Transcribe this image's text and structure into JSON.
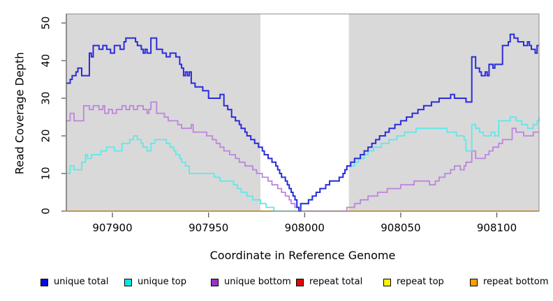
{
  "chart_data": {
    "type": "line",
    "step": true,
    "title": "",
    "xlabel": "Coordinate in Reference Genome",
    "ylabel": "Read Coverage Depth",
    "xlim": [
      907876,
      908122
    ],
    "ylim": [
      0,
      52.4
    ],
    "x_ticks": [
      907900,
      907950,
      908000,
      908050,
      908100
    ],
    "y_ticks": [
      0,
      10,
      20,
      30,
      40,
      50
    ],
    "grid": false,
    "plot_background": "#d9d9d9",
    "page_background": "#ffffff",
    "highlight_region": {
      "x_start": 907977,
      "x_end": 908023,
      "color": "#ffffff"
    },
    "legend_position": "bottom",
    "series": [
      {
        "name": "unique total",
        "color": "#0909dd",
        "line_color": "#2b2bdc",
        "line_width": 2,
        "draw_order": 6,
        "points": [
          [
            907876,
            34
          ],
          [
            907878,
            35
          ],
          [
            907879,
            36
          ],
          [
            907881,
            37
          ],
          [
            907882,
            38
          ],
          [
            907884,
            36
          ],
          [
            907888,
            42
          ],
          [
            907889,
            41
          ],
          [
            907890,
            44
          ],
          [
            907893,
            43
          ],
          [
            907895,
            44
          ],
          [
            907897,
            43
          ],
          [
            907899,
            42
          ],
          [
            907901,
            44
          ],
          [
            907904,
            43
          ],
          [
            907906,
            45
          ],
          [
            907907,
            46
          ],
          [
            907912,
            45
          ],
          [
            907913,
            44
          ],
          [
            907915,
            43
          ],
          [
            907916,
            42
          ],
          [
            907917,
            43
          ],
          [
            907918,
            42
          ],
          [
            907920,
            46
          ],
          [
            907923,
            43
          ],
          [
            907926,
            42
          ],
          [
            907928,
            41
          ],
          [
            907930,
            42
          ],
          [
            907933,
            41
          ],
          [
            907935,
            39
          ],
          [
            907936,
            38
          ],
          [
            907937,
            36
          ],
          [
            907938,
            37
          ],
          [
            907939,
            36
          ],
          [
            907940,
            37
          ],
          [
            907941,
            34
          ],
          [
            907943,
            33
          ],
          [
            907947,
            32
          ],
          [
            907950,
            30
          ],
          [
            907954,
            30
          ],
          [
            907956,
            31
          ],
          [
            907958,
            28
          ],
          [
            907960,
            27
          ],
          [
            907962,
            25
          ],
          [
            907964,
            24
          ],
          [
            907966,
            23
          ],
          [
            907967,
            22
          ],
          [
            907969,
            21
          ],
          [
            907970,
            20
          ],
          [
            907972,
            19
          ],
          [
            907974,
            18
          ],
          [
            907976,
            17
          ],
          [
            907978,
            16
          ],
          [
            907979,
            15
          ],
          [
            907981,
            14
          ],
          [
            907983,
            13
          ],
          [
            907985,
            12
          ],
          [
            907986,
            11
          ],
          [
            907987,
            10
          ],
          [
            907988,
            9
          ],
          [
            907990,
            8
          ],
          [
            907991,
            7
          ],
          [
            907992,
            6
          ],
          [
            907993,
            5
          ],
          [
            907994,
            4
          ],
          [
            907995,
            3
          ],
          [
            907996,
            1
          ],
          [
            907997,
            0
          ],
          [
            907998,
            2
          ],
          [
            908002,
            3
          ],
          [
            908004,
            4
          ],
          [
            908006,
            5
          ],
          [
            908008,
            6
          ],
          [
            908011,
            7
          ],
          [
            908013,
            8
          ],
          [
            908018,
            9
          ],
          [
            908020,
            10
          ],
          [
            908021,
            11
          ],
          [
            908022,
            12
          ],
          [
            908024,
            13
          ],
          [
            908026,
            14
          ],
          [
            908029,
            15
          ],
          [
            908031,
            16
          ],
          [
            908033,
            17
          ],
          [
            908035,
            18
          ],
          [
            908037,
            19
          ],
          [
            908039,
            20
          ],
          [
            908042,
            21
          ],
          [
            908044,
            22
          ],
          [
            908047,
            23
          ],
          [
            908050,
            24
          ],
          [
            908053,
            25
          ],
          [
            908056,
            26
          ],
          [
            908059,
            27
          ],
          [
            908062,
            28
          ],
          [
            908066,
            29
          ],
          [
            908070,
            30
          ],
          [
            908074,
            30
          ],
          [
            908076,
            31
          ],
          [
            908078,
            30
          ],
          [
            908082,
            30
          ],
          [
            908084,
            29
          ],
          [
            908086,
            29
          ],
          [
            908087,
            41
          ],
          [
            908089,
            38
          ],
          [
            908091,
            37
          ],
          [
            908092,
            36
          ],
          [
            908094,
            37
          ],
          [
            908095,
            36
          ],
          [
            908096,
            39
          ],
          [
            908098,
            38
          ],
          [
            908099,
            39
          ],
          [
            908102,
            39
          ],
          [
            908103,
            44
          ],
          [
            908105,
            44
          ],
          [
            908106,
            45
          ],
          [
            908107,
            47
          ],
          [
            908109,
            46
          ],
          [
            908111,
            45
          ],
          [
            908114,
            44
          ],
          [
            908116,
            45
          ],
          [
            908117,
            44
          ],
          [
            908118,
            43
          ],
          [
            908120,
            42
          ],
          [
            908121,
            44
          ],
          [
            908122,
            44
          ]
        ]
      },
      {
        "name": "unique top",
        "color": "#00e5e5",
        "line_color": "#5fe8ea",
        "line_width": 1.8,
        "draw_order": 5,
        "points": [
          [
            907876,
            10
          ],
          [
            907878,
            12
          ],
          [
            907880,
            11
          ],
          [
            907884,
            13
          ],
          [
            907886,
            15
          ],
          [
            907887,
            14
          ],
          [
            907889,
            15
          ],
          [
            907894,
            16
          ],
          [
            907897,
            17
          ],
          [
            907901,
            16
          ],
          [
            907905,
            18
          ],
          [
            907909,
            19
          ],
          [
            907911,
            20
          ],
          [
            907913,
            19
          ],
          [
            907915,
            18
          ],
          [
            907916,
            17
          ],
          [
            907918,
            16
          ],
          [
            907920,
            18
          ],
          [
            907922,
            19
          ],
          [
            907928,
            18
          ],
          [
            907930,
            17
          ],
          [
            907932,
            16
          ],
          [
            907933,
            15
          ],
          [
            907935,
            14
          ],
          [
            907936,
            13
          ],
          [
            907938,
            12
          ],
          [
            907940,
            10
          ],
          [
            907950,
            10
          ],
          [
            907953,
            9
          ],
          [
            907956,
            8
          ],
          [
            907963,
            7
          ],
          [
            907965,
            6
          ],
          [
            907967,
            5
          ],
          [
            907970,
            4
          ],
          [
            907973,
            3
          ],
          [
            907977,
            2
          ],
          [
            907980,
            1
          ],
          [
            907984,
            0
          ],
          [
            907998,
            2
          ],
          [
            908002,
            3
          ],
          [
            908004,
            4
          ],
          [
            908006,
            5
          ],
          [
            908008,
            6
          ],
          [
            908011,
            7
          ],
          [
            908013,
            8
          ],
          [
            908018,
            9
          ],
          [
            908020,
            10
          ],
          [
            908021,
            11
          ],
          [
            908022,
            12
          ],
          [
            908026,
            13
          ],
          [
            908028,
            14
          ],
          [
            908031,
            15
          ],
          [
            908033,
            16
          ],
          [
            908036,
            17
          ],
          [
            908040,
            18
          ],
          [
            908044,
            19
          ],
          [
            908048,
            20
          ],
          [
            908052,
            21
          ],
          [
            908058,
            22
          ],
          [
            908068,
            22
          ],
          [
            908074,
            21
          ],
          [
            908079,
            20
          ],
          [
            908083,
            19
          ],
          [
            908084,
            16
          ],
          [
            908087,
            23
          ],
          [
            908089,
            22
          ],
          [
            908091,
            21
          ],
          [
            908093,
            20
          ],
          [
            908097,
            21
          ],
          [
            908099,
            20
          ],
          [
            908101,
            24
          ],
          [
            908107,
            25
          ],
          [
            908110,
            24
          ],
          [
            908113,
            23
          ],
          [
            908116,
            22
          ],
          [
            908119,
            23
          ],
          [
            908121,
            24
          ],
          [
            908122,
            25
          ]
        ]
      },
      {
        "name": "unique bottom",
        "color": "#9932cc",
        "line_color": "#bc85de",
        "line_width": 1.8,
        "draw_order": 4,
        "points": [
          [
            907876,
            24
          ],
          [
            907878,
            26
          ],
          [
            907880,
            24
          ],
          [
            907885,
            28
          ],
          [
            907888,
            27
          ],
          [
            907890,
            28
          ],
          [
            907893,
            27
          ],
          [
            907895,
            28
          ],
          [
            907896,
            26
          ],
          [
            907898,
            27
          ],
          [
            907900,
            26
          ],
          [
            907902,
            27
          ],
          [
            907905,
            28
          ],
          [
            907907,
            27
          ],
          [
            907909,
            28
          ],
          [
            907911,
            27
          ],
          [
            907913,
            28
          ],
          [
            907916,
            27
          ],
          [
            907918,
            26
          ],
          [
            907919,
            27
          ],
          [
            907920,
            29
          ],
          [
            907923,
            26
          ],
          [
            907927,
            25
          ],
          [
            907929,
            24
          ],
          [
            907932,
            24
          ],
          [
            907934,
            23
          ],
          [
            907936,
            22
          ],
          [
            907939,
            22
          ],
          [
            907941,
            23
          ],
          [
            907942,
            21
          ],
          [
            907947,
            21
          ],
          [
            907949,
            20
          ],
          [
            907952,
            19
          ],
          [
            907954,
            18
          ],
          [
            907956,
            17
          ],
          [
            907958,
            16
          ],
          [
            907961,
            15
          ],
          [
            907964,
            14
          ],
          [
            907966,
            13
          ],
          [
            907969,
            12
          ],
          [
            907973,
            11
          ],
          [
            907975,
            10
          ],
          [
            907978,
            9
          ],
          [
            907981,
            8
          ],
          [
            907983,
            7
          ],
          [
            907986,
            6
          ],
          [
            907988,
            5
          ],
          [
            907990,
            4
          ],
          [
            907992,
            3
          ],
          [
            907993,
            2
          ],
          [
            907995,
            1
          ],
          [
            907997,
            0
          ],
          [
            908022,
            1
          ],
          [
            908026,
            2
          ],
          [
            908029,
            3
          ],
          [
            908033,
            4
          ],
          [
            908038,
            5
          ],
          [
            908043,
            6
          ],
          [
            908050,
            7
          ],
          [
            908057,
            8
          ],
          [
            908063,
            8
          ],
          [
            908065,
            7
          ],
          [
            908068,
            8
          ],
          [
            908070,
            9
          ],
          [
            908073,
            10
          ],
          [
            908076,
            11
          ],
          [
            908078,
            12
          ],
          [
            908081,
            11
          ],
          [
            908083,
            12
          ],
          [
            908084,
            13
          ],
          [
            908087,
            16
          ],
          [
            908089,
            14
          ],
          [
            908092,
            14
          ],
          [
            908094,
            15
          ],
          [
            908096,
            16
          ],
          [
            908098,
            17
          ],
          [
            908101,
            18
          ],
          [
            908103,
            19
          ],
          [
            908106,
            19
          ],
          [
            908108,
            22
          ],
          [
            908110,
            21
          ],
          [
            908114,
            20
          ],
          [
            908119,
            21
          ],
          [
            908122,
            21
          ]
        ]
      },
      {
        "name": "repeat total",
        "color": "#dd0707",
        "line_color": "#dd2222",
        "line_width": 1.8,
        "draw_order": 1,
        "points": [
          [
            907876,
            0
          ],
          [
            908122,
            0
          ]
        ]
      },
      {
        "name": "repeat top",
        "color": "#f5f500",
        "line_color": "#f5f500",
        "line_width": 1.8,
        "draw_order": 2,
        "points": [
          [
            907876,
            0
          ],
          [
            908122,
            0
          ]
        ]
      },
      {
        "name": "repeat bottom",
        "color": "#ff9e00",
        "line_color": "#ffa013",
        "line_width": 2,
        "draw_order": 3,
        "points": [
          [
            907876,
            0
          ],
          [
            908122,
            0
          ]
        ]
      }
    ]
  }
}
